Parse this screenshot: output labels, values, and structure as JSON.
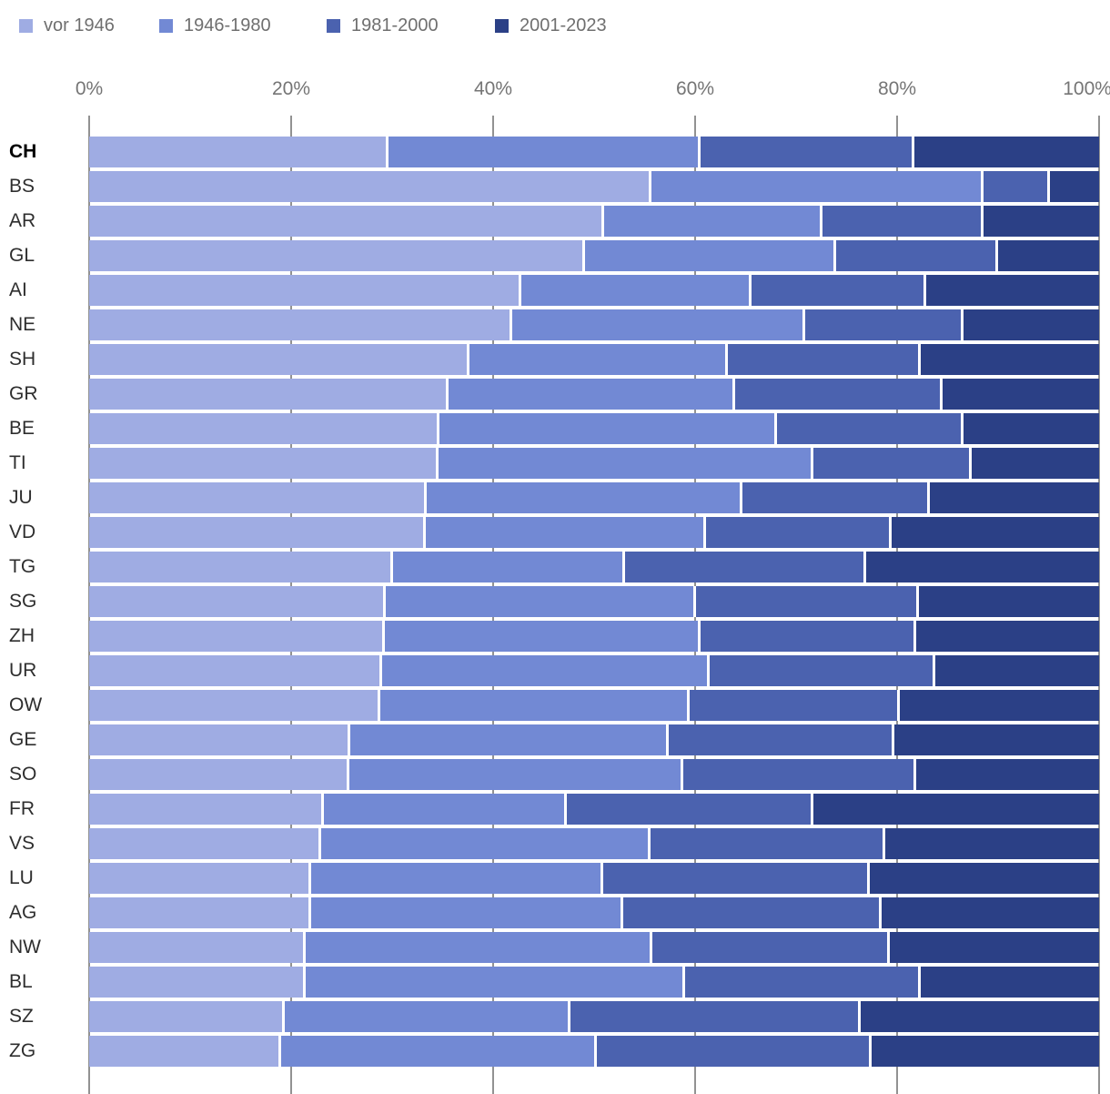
{
  "legend": {
    "items": [
      {
        "label": "vor 1946"
      },
      {
        "label": "1946-1980"
      },
      {
        "label": "1981-2000"
      },
      {
        "label": "2001-2023"
      }
    ]
  },
  "chart_data": {
    "type": "bar",
    "stacked": true,
    "horizontal": true,
    "unit": "%",
    "xlim": [
      0,
      100
    ],
    "x_ticks": [
      "0%",
      "20%",
      "40%",
      "60%",
      "80%",
      "100%"
    ],
    "grid": true,
    "legend_position": "top",
    "highlight_category": "CH",
    "categories": [
      "CH",
      "BS",
      "AR",
      "GL",
      "AI",
      "NE",
      "SH",
      "GR",
      "BE",
      "TI",
      "JU",
      "VD",
      "TG",
      "SG",
      "ZH",
      "UR",
      "OW",
      "GE",
      "SO",
      "FR",
      "VS",
      "LU",
      "AG",
      "NW",
      "BL",
      "SZ",
      "ZG"
    ],
    "series": [
      {
        "name": "vor 1946",
        "color": "#9FACE3",
        "values": [
          29.6,
          55.7,
          51.0,
          49.1,
          42.8,
          41.9,
          37.7,
          35.6,
          34.7,
          34.6,
          33.4,
          33.3,
          30.1,
          29.4,
          29.3,
          29.0,
          28.8,
          25.9,
          25.8,
          23.2,
          23.0,
          22.0,
          22.0,
          21.4,
          21.4,
          19.4,
          19.0
        ]
      },
      {
        "name": "1946-1980",
        "color": "#7289D4",
        "values": [
          30.9,
          32.9,
          21.6,
          24.9,
          22.8,
          29.0,
          25.5,
          28.4,
          33.4,
          37.1,
          31.3,
          27.8,
          23.0,
          30.7,
          31.2,
          32.4,
          30.7,
          31.5,
          33.0,
          24.1,
          32.6,
          28.9,
          30.9,
          34.4,
          37.6,
          28.3,
          31.3
        ]
      },
      {
        "name": "1981-2000",
        "color": "#4B62AF",
        "values": [
          21.2,
          6.5,
          16.0,
          16.0,
          17.3,
          15.7,
          19.1,
          20.5,
          18.5,
          15.7,
          18.5,
          18.4,
          23.8,
          22.1,
          21.4,
          22.4,
          20.8,
          22.3,
          23.1,
          24.4,
          23.2,
          26.4,
          25.6,
          23.5,
          23.3,
          28.7,
          27.2
        ]
      },
      {
        "name": "2001-2023",
        "color": "#2B4086",
        "values": [
          18.3,
          4.9,
          11.4,
          10.0,
          17.1,
          13.4,
          17.7,
          15.5,
          13.4,
          12.6,
          16.8,
          20.5,
          23.1,
          17.8,
          18.1,
          16.2,
          19.7,
          20.3,
          18.1,
          28.3,
          21.2,
          22.7,
          21.5,
          20.7,
          17.7,
          23.6,
          22.5
        ]
      }
    ]
  }
}
